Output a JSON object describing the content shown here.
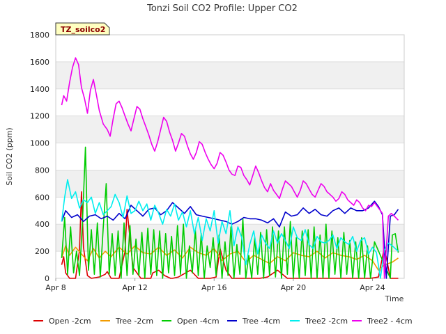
{
  "chart_data": {
    "type": "line",
    "title": "Tonzi Soil CO2 Profile: Upper CO2",
    "badge": "TZ_soilco2",
    "xlabel": "Time",
    "ylabel": "Soil CO2 (ppm)",
    "ylim": [
      0,
      1800
    ],
    "xlim": [
      8,
      25.6
    ],
    "yticks": [
      0,
      200,
      400,
      600,
      800,
      1000,
      1200,
      1400,
      1600,
      1800
    ],
    "xticks": [
      {
        "label": "Apr 8",
        "value": 8
      },
      {
        "label": "Apr 12",
        "value": 12
      },
      {
        "label": "Apr 16",
        "value": 16
      },
      {
        "label": "Apr 20",
        "value": 20
      },
      {
        "label": "Apr 24",
        "value": 24
      }
    ],
    "series": [
      {
        "name": "Open -2cm",
        "color": "#dd0000",
        "x": [
          8.3,
          8.4,
          8.5,
          8.7,
          9.0,
          9.2,
          9.3,
          9.4,
          9.6,
          9.8,
          10.2,
          10.5,
          10.6,
          10.8,
          11.2,
          11.5,
          11.6,
          11.9,
          12.3,
          12.8,
          12.9,
          13.2,
          13.5,
          13.8,
          13.9,
          14.2,
          14.8,
          15.2,
          15.8,
          16.1,
          16.3,
          16.6,
          16.9,
          17.2,
          17.6,
          17.9,
          18.3,
          18.7,
          19.2,
          19.7,
          20.3,
          21.0,
          21.8,
          22.5,
          23.2,
          23.7,
          23.9,
          24.3,
          24.6,
          24.9,
          25.1,
          25.3
        ],
        "y": [
          100,
          160,
          40,
          0,
          0,
          210,
          640,
          230,
          20,
          0,
          10,
          30,
          50,
          0,
          0,
          200,
          510,
          80,
          0,
          0,
          40,
          60,
          20,
          0,
          0,
          10,
          60,
          0,
          0,
          10,
          220,
          60,
          0,
          0,
          0,
          0,
          0,
          10,
          60,
          0,
          0,
          0,
          0,
          0,
          0,
          0,
          0,
          10,
          230,
          0,
          0,
          0
        ]
      },
      {
        "name": "Tree -2cm",
        "color": "#f29b00",
        "x": [
          8.3,
          8.5,
          8.7,
          9.0,
          9.3,
          9.6,
          9.9,
          10.2,
          10.5,
          10.8,
          11.2,
          11.6,
          12.0,
          12.4,
          12.8,
          13.2,
          13.6,
          14.0,
          14.4,
          14.8,
          15.2,
          15.6,
          16.0,
          16.4,
          16.8,
          17.2,
          17.6,
          18.0,
          18.4,
          18.8,
          19.2,
          19.6,
          20.0,
          20.4,
          20.8,
          21.2,
          21.6,
          22.0,
          22.4,
          22.8,
          23.2,
          23.6,
          24.0,
          24.3,
          24.6,
          25.0,
          25.3
        ],
        "y": [
          150,
          240,
          170,
          230,
          180,
          130,
          220,
          150,
          200,
          160,
          230,
          180,
          240,
          190,
          180,
          230,
          170,
          210,
          150,
          230,
          190,
          170,
          220,
          130,
          180,
          200,
          120,
          170,
          140,
          110,
          160,
          130,
          190,
          170,
          160,
          200,
          150,
          190,
          170,
          160,
          140,
          170,
          130,
          60,
          100,
          120,
          150
        ]
      },
      {
        "name": "Open -4cm",
        "color": "#00cc00",
        "x": [
          8.3,
          8.45,
          8.6,
          8.75,
          8.9,
          9.05,
          9.2,
          9.35,
          9.5,
          9.65,
          9.8,
          9.95,
          10.1,
          10.25,
          10.4,
          10.55,
          10.7,
          10.85,
          11.0,
          11.15,
          11.3,
          11.45,
          11.6,
          11.75,
          11.9,
          12.05,
          12.2,
          12.35,
          12.5,
          12.65,
          12.8,
          12.95,
          13.1,
          13.25,
          13.4,
          13.55,
          13.7,
          13.85,
          14.0,
          14.15,
          14.3,
          14.45,
          14.6,
          14.75,
          14.9,
          15.05,
          15.2,
          15.35,
          15.5,
          15.65,
          15.8,
          15.95,
          16.1,
          16.25,
          16.4,
          16.55,
          16.7,
          16.85,
          17.0,
          17.15,
          17.3,
          17.45,
          17.6,
          17.75,
          17.9,
          18.05,
          18.2,
          18.35,
          18.5,
          18.65,
          18.8,
          18.95,
          19.1,
          19.25,
          19.4,
          19.55,
          19.7,
          19.85,
          20.0,
          20.15,
          20.3,
          20.45,
          20.6,
          20.75,
          20.9,
          21.05,
          21.2,
          21.35,
          21.5,
          21.65,
          21.8,
          21.95,
          22.1,
          22.25,
          22.4,
          22.55,
          22.7,
          22.85,
          23.0,
          23.15,
          23.3,
          23.45,
          23.6,
          23.75,
          23.9,
          24.1,
          24.9,
          25.0,
          25.15,
          25.3
        ],
        "y": [
          150,
          450,
          30,
          380,
          40,
          200,
          20,
          420,
          970,
          60,
          360,
          30,
          410,
          10,
          380,
          700,
          30,
          330,
          20,
          350,
          0,
          410,
          20,
          390,
          30,
          290,
          20,
          340,
          0,
          370,
          30,
          360,
          20,
          350,
          0,
          330,
          40,
          310,
          20,
          390,
          30,
          400,
          0,
          240,
          40,
          360,
          20,
          330,
          0,
          240,
          80,
          300,
          20,
          320,
          0,
          270,
          20,
          380,
          0,
          250,
          30,
          440,
          0,
          170,
          0,
          300,
          30,
          340,
          0,
          360,
          20,
          380,
          10,
          350,
          0,
          380,
          30,
          420,
          0,
          300,
          0,
          350,
          20,
          360,
          0,
          380,
          0,
          320,
          0,
          400,
          0,
          350,
          30,
          300,
          0,
          340,
          30,
          280,
          0,
          270,
          0,
          300,
          0,
          240,
          0,
          270,
          0,
          320,
          330,
          190
        ]
      },
      {
        "name": "Tree -4cm",
        "color": "#0000cc",
        "x": [
          8.3,
          8.5,
          8.8,
          9.1,
          9.4,
          9.7,
          10.0,
          10.3,
          10.6,
          10.9,
          11.2,
          11.5,
          11.8,
          12.1,
          12.4,
          12.7,
          13.0,
          13.3,
          13.6,
          13.9,
          14.2,
          14.5,
          14.8,
          15.1,
          15.4,
          15.7,
          16.0,
          16.3,
          16.6,
          16.9,
          17.2,
          17.5,
          17.8,
          18.1,
          18.4,
          18.7,
          19.0,
          19.3,
          19.6,
          19.9,
          20.2,
          20.5,
          20.8,
          21.1,
          21.4,
          21.7,
          22.0,
          22.3,
          22.6,
          22.9,
          23.2,
          23.5,
          23.8,
          24.1,
          24.3,
          24.5,
          24.7,
          24.9,
          25.1,
          25.3
        ],
        "y": [
          420,
          500,
          450,
          470,
          420,
          460,
          470,
          440,
          460,
          430,
          480,
          440,
          540,
          500,
          460,
          510,
          520,
          470,
          500,
          560,
          520,
          480,
          530,
          470,
          460,
          450,
          440,
          430,
          420,
          400,
          420,
          450,
          440,
          440,
          430,
          410,
          440,
          380,
          490,
          460,
          470,
          520,
          480,
          510,
          470,
          460,
          500,
          520,
          480,
          520,
          500,
          500,
          520,
          570,
          530,
          470,
          0,
          460,
          470,
          510
        ]
      },
      {
        "name": "Tree2 -2cm",
        "color": "#00eeee",
        "x": [
          8.3,
          8.45,
          8.6,
          8.8,
          9.0,
          9.2,
          9.4,
          9.6,
          9.8,
          10.0,
          10.2,
          10.4,
          10.6,
          10.8,
          11.0,
          11.2,
          11.4,
          11.6,
          11.8,
          12.0,
          12.2,
          12.4,
          12.6,
          12.8,
          13.0,
          13.2,
          13.4,
          13.6,
          13.8,
          14.0,
          14.2,
          14.4,
          14.6,
          14.8,
          15.0,
          15.2,
          15.4,
          15.6,
          15.8,
          16.0,
          16.2,
          16.4,
          16.6,
          16.8,
          17.0,
          17.2,
          17.4,
          17.6,
          17.8,
          18.0,
          18.2,
          18.4,
          18.6,
          18.8,
          19.0,
          19.2,
          19.4,
          19.6,
          19.8,
          20.0,
          20.2,
          20.4,
          20.6,
          20.8,
          21.0,
          21.2,
          21.4,
          21.6,
          21.8,
          22.0,
          22.2,
          22.4,
          22.6,
          22.8,
          23.0,
          23.2,
          23.4,
          23.6,
          23.8,
          24.0,
          24.2,
          24.4,
          24.6,
          24.8,
          25.0,
          25.3
        ],
        "y": [
          420,
          600,
          730,
          590,
          640,
          520,
          580,
          560,
          600,
          480,
          560,
          470,
          500,
          530,
          620,
          560,
          450,
          610,
          480,
          500,
          570,
          500,
          550,
          430,
          540,
          480,
          400,
          510,
          460,
          550,
          430,
          490,
          380,
          500,
          330,
          450,
          280,
          440,
          350,
          500,
          260,
          420,
          330,
          500,
          240,
          380,
          300,
          100,
          250,
          350,
          180,
          320,
          260,
          220,
          350,
          260,
          330,
          280,
          220,
          380,
          300,
          280,
          360,
          250,
          220,
          310,
          270,
          260,
          280,
          320,
          220,
          300,
          270,
          250,
          310,
          200,
          280,
          300,
          180,
          230,
          190,
          0,
          210,
          260,
          240,
          200
        ]
      },
      {
        "name": "Tree2 - 4cm",
        "color": "#ee00ee",
        "x": [
          8.3,
          8.4,
          8.55,
          8.7,
          8.85,
          9.0,
          9.15,
          9.3,
          9.45,
          9.6,
          9.75,
          9.9,
          10.05,
          10.2,
          10.4,
          10.6,
          10.75,
          10.9,
          11.05,
          11.2,
          11.35,
          11.5,
          11.65,
          11.8,
          11.95,
          12.1,
          12.25,
          12.4,
          12.55,
          12.7,
          12.85,
          13.0,
          13.15,
          13.3,
          13.45,
          13.6,
          13.75,
          13.9,
          14.05,
          14.2,
          14.35,
          14.5,
          14.65,
          14.8,
          14.95,
          15.1,
          15.25,
          15.4,
          15.55,
          15.7,
          15.85,
          16.0,
          16.15,
          16.3,
          16.45,
          16.6,
          16.75,
          16.9,
          17.05,
          17.2,
          17.35,
          17.5,
          17.65,
          17.8,
          17.95,
          18.1,
          18.25,
          18.4,
          18.55,
          18.7,
          18.85,
          19.0,
          19.15,
          19.3,
          19.45,
          19.6,
          19.75,
          19.9,
          20.05,
          20.2,
          20.35,
          20.5,
          20.65,
          20.8,
          20.95,
          21.1,
          21.25,
          21.4,
          21.55,
          21.7,
          21.85,
          22.0,
          22.15,
          22.3,
          22.45,
          22.6,
          22.75,
          22.9,
          23.05,
          23.2,
          23.35,
          23.5,
          23.65,
          23.8,
          23.95,
          24.1,
          24.3,
          24.5,
          24.6,
          24.8,
          24.95,
          25.1,
          25.3
        ],
        "y": [
          1280,
          1350,
          1310,
          1450,
          1560,
          1630,
          1580,
          1410,
          1330,
          1220,
          1390,
          1470,
          1360,
          1240,
          1140,
          1100,
          1050,
          1180,
          1290,
          1310,
          1260,
          1200,
          1140,
          1090,
          1180,
          1270,
          1250,
          1180,
          1120,
          1060,
          990,
          940,
          1010,
          1100,
          1190,
          1160,
          1080,
          1020,
          940,
          1000,
          1070,
          1050,
          980,
          920,
          880,
          930,
          1010,
          990,
          930,
          880,
          840,
          810,
          850,
          930,
          910,
          860,
          800,
          770,
          760,
          830,
          820,
          760,
          730,
          690,
          760,
          830,
          780,
          720,
          670,
          640,
          700,
          650,
          620,
          590,
          660,
          720,
          700,
          680,
          640,
          600,
          650,
          720,
          700,
          660,
          620,
          600,
          650,
          700,
          680,
          640,
          620,
          600,
          570,
          590,
          640,
          620,
          580,
          560,
          540,
          580,
          560,
          520,
          500,
          540,
          530,
          560,
          520,
          480,
          0,
          460,
          480,
          460,
          430
        ]
      }
    ]
  }
}
